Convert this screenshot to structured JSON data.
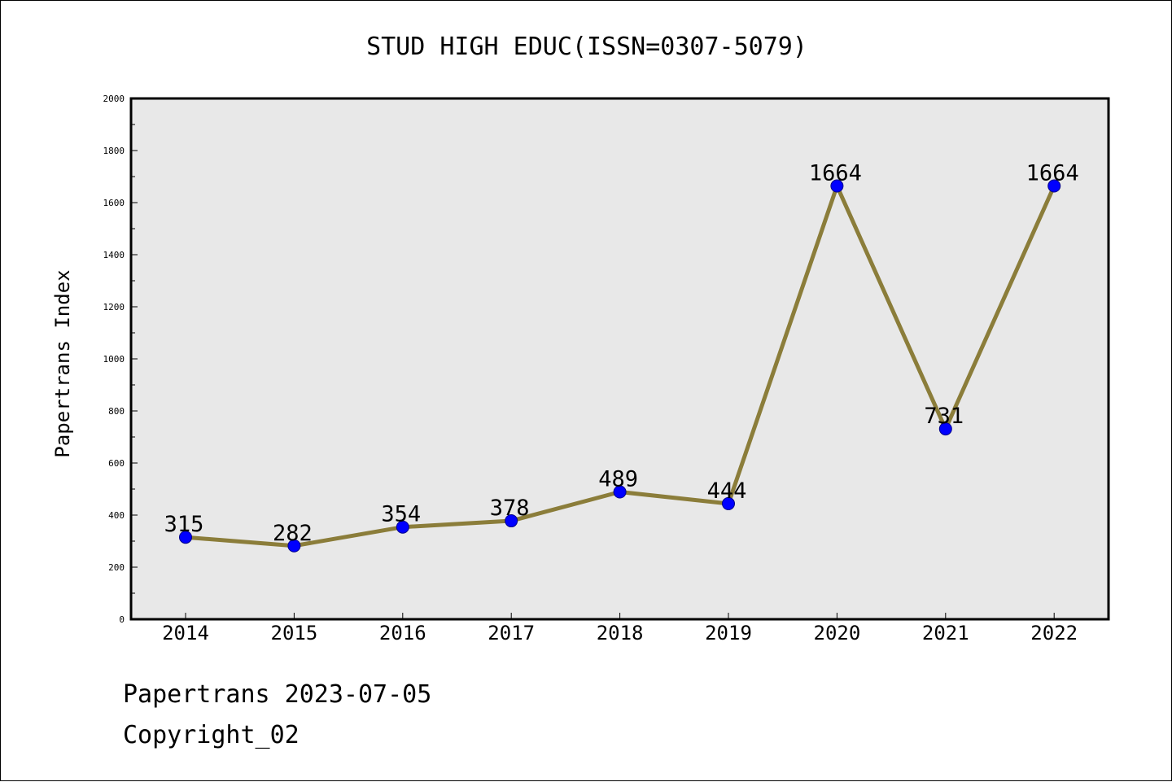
{
  "chart_data": {
    "type": "line",
    "title": "STUD HIGH EDUC(ISSN=0307-5079)",
    "xlabel": "",
    "ylabel": "Papertrans Index",
    "categories": [
      "2014",
      "2015",
      "2016",
      "2017",
      "2018",
      "2019",
      "2020",
      "2021",
      "2022"
    ],
    "series": [
      {
        "values": [
          315,
          282,
          354,
          378,
          489,
          444,
          1664,
          731,
          1664
        ]
      }
    ],
    "data_labels": [
      "315",
      "282",
      "354",
      "378",
      "489",
      "444",
      "1664",
      "731",
      "1664"
    ],
    "ylim": [
      0,
      2000
    ],
    "yticks": [
      0,
      200,
      400,
      600,
      800,
      1000,
      1200,
      1400,
      1600,
      1800,
      2000
    ],
    "ytick_labels": [
      "0",
      "200",
      "400",
      "600",
      "800",
      "1000",
      "1200",
      "1400",
      "1600",
      "1800",
      "2000"
    ],
    "grid": false,
    "legend": "none",
    "colors": {
      "line": "#8b7d3a",
      "marker": "#0000ff",
      "marker_edge": "#00008b",
      "plot_bg": "#e8e8e8"
    }
  },
  "footer": {
    "line1": "Papertrans 2023-07-05",
    "line2": "Copyright_02"
  }
}
